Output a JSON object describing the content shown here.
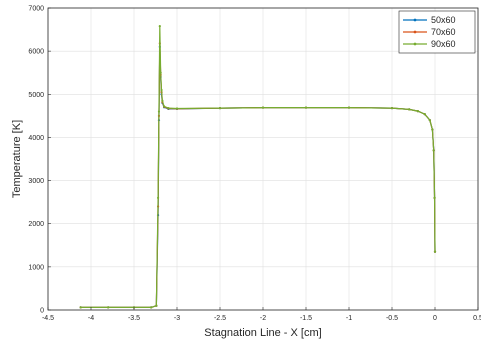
{
  "chart_data": {
    "type": "line",
    "title": "",
    "xlabel": "Stagnation Line - X [cm]",
    "ylabel": "Temperature [K]",
    "xlim": [
      -4.5,
      0.5
    ],
    "ylim": [
      0,
      7000
    ],
    "xticks": [
      -4.5,
      -4,
      -3.5,
      -3,
      -2.5,
      -2,
      -1.5,
      -1,
      -0.5,
      0,
      0.5
    ],
    "yticks": [
      0,
      1000,
      2000,
      3000,
      4000,
      5000,
      6000,
      7000
    ],
    "xtick_labels": [
      "-4.5",
      "-4",
      "-3.5",
      "-3",
      "-2.5",
      "-2",
      "-1.5",
      "-1",
      "-0.5",
      "0",
      "0.5"
    ],
    "ytick_labels": [
      "0",
      "1000",
      "2000",
      "3000",
      "4000",
      "5000",
      "6000",
      "7000"
    ],
    "grid": true,
    "legend_position": "top-right",
    "series": [
      {
        "name": "50x60",
        "color": "#0072bd",
        "x": [
          -4.12,
          -3.8,
          -3.5,
          -3.3,
          -3.24,
          -3.22,
          -3.21,
          -3.2,
          -3.19,
          -3.18,
          -3.17,
          -3.15,
          -3.1,
          -3.0,
          -2.5,
          -2.0,
          -1.5,
          -1.0,
          -0.5,
          -0.3,
          -0.2,
          -0.12,
          -0.06,
          -0.03,
          -0.015,
          -0.005,
          0
        ],
        "y": [
          60,
          60,
          60,
          60,
          100,
          2200,
          4400,
          6100,
          5400,
          5000,
          4800,
          4700,
          4660,
          4660,
          4680,
          4690,
          4690,
          4690,
          4680,
          4650,
          4610,
          4540,
          4400,
          4180,
          3700,
          2600,
          1350
        ]
      },
      {
        "name": "70x60",
        "color": "#d95319",
        "x": [
          -4.12,
          -3.8,
          -3.5,
          -3.3,
          -3.24,
          -3.22,
          -3.21,
          -3.2,
          -3.19,
          -3.18,
          -3.17,
          -3.15,
          -3.1,
          -3.0,
          -2.5,
          -2.0,
          -1.5,
          -1.0,
          -0.5,
          -0.3,
          -0.2,
          -0.12,
          -0.06,
          -0.03,
          -0.015,
          -0.005,
          0
        ],
        "y": [
          60,
          60,
          60,
          60,
          100,
          2400,
          4500,
          6180,
          5450,
          5050,
          4820,
          4710,
          4670,
          4665,
          4680,
          4690,
          4690,
          4690,
          4680,
          4650,
          4610,
          4540,
          4400,
          4180,
          3700,
          2600,
          1350
        ]
      },
      {
        "name": "90x60",
        "color": "#77ac30",
        "x": [
          -4.12,
          -3.8,
          -3.5,
          -3.3,
          -3.24,
          -3.22,
          -3.21,
          -3.2,
          -3.19,
          -3.18,
          -3.17,
          -3.15,
          -3.1,
          -3.0,
          -2.5,
          -2.0,
          -1.5,
          -1.0,
          -0.5,
          -0.3,
          -0.2,
          -0.12,
          -0.06,
          -0.03,
          -0.015,
          -0.005,
          0
        ],
        "y": [
          60,
          60,
          60,
          60,
          100,
          2600,
          4600,
          6580,
          5500,
          5100,
          4850,
          4720,
          4680,
          4670,
          4680,
          4690,
          4690,
          4690,
          4680,
          4650,
          4610,
          4540,
          4400,
          4180,
          3700,
          2600,
          1350
        ]
      }
    ]
  }
}
